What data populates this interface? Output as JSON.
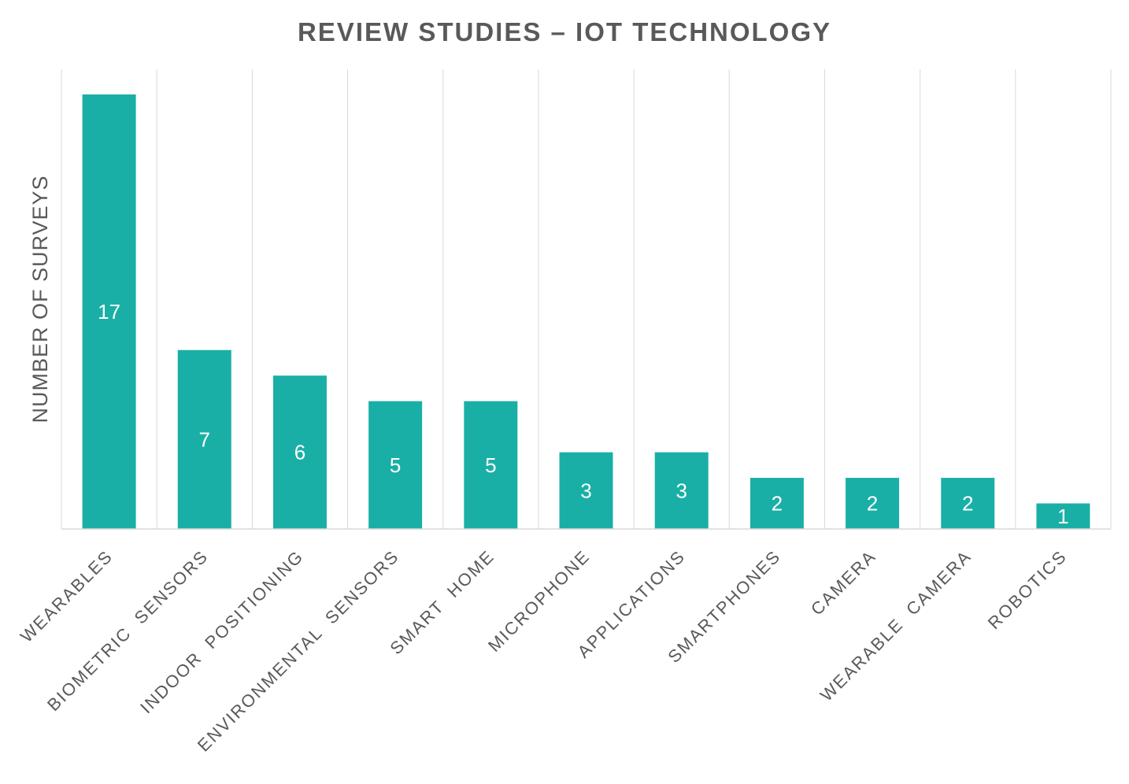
{
  "chart_data": {
    "type": "bar",
    "title": "REVIEW STUDIES – IOT TECHNOLOGY",
    "xlabel": "",
    "ylabel": "NUMBER OF SURVEYS",
    "categories": [
      "WEARABLES",
      "BIOMETRIC  SENSORS",
      "INDOOR  POSITIONING",
      "ENVIRONMENTAL  SENSORS",
      "SMART  HOME",
      "MICROPHONE",
      "APPLICATIONS",
      "SMARTPHONES",
      "CAMERA",
      "WEARABLE  CAMERA",
      "ROBOTICS"
    ],
    "values": [
      17,
      7,
      6,
      5,
      5,
      3,
      3,
      2,
      2,
      2,
      1
    ],
    "ylim": [
      0,
      18
    ],
    "grid": "vertical",
    "legend": "none",
    "data_labels": true,
    "colors": {
      "bar": "#1aafa6",
      "title": "#595959",
      "text": "#595959",
      "grid": "#d9d9d9",
      "data_label": "#ffffff"
    }
  }
}
